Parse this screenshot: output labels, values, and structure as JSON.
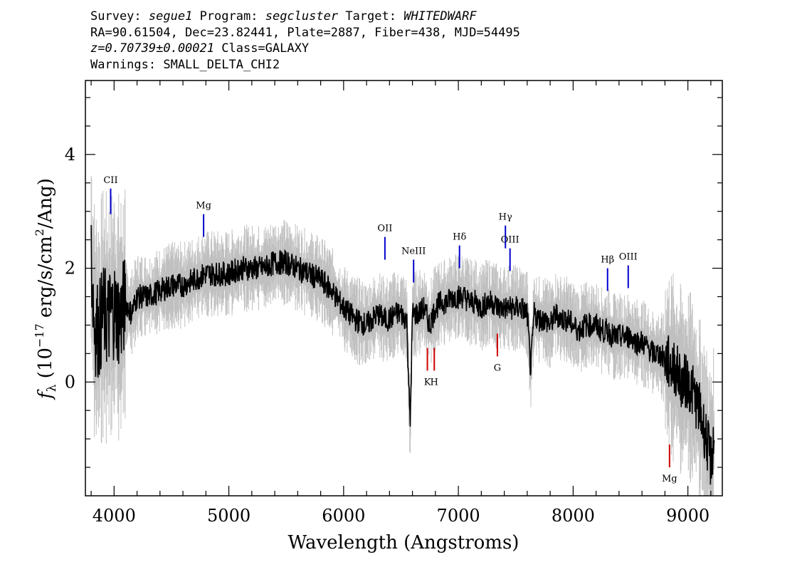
{
  "header": {
    "survey_label": "Survey:",
    "survey": "segue1",
    "program_label": "Program:",
    "program": "segcluster",
    "target_label": "Target:",
    "target": "WHITEDWARF",
    "line2": "RA=90.61504, Dec=23.82441, Plate=2887, Fiber=438, MJD=54495",
    "redshift": "z=0.70739±0.00021",
    "class": "Class=GALAXY",
    "warnings": "Warnings: SMALL_DELTA_CHI2"
  },
  "colors": {
    "spectrum": "#000000",
    "error": "#c0c0c0",
    "emission": "#0000cc",
    "absorption": "#cc0000"
  },
  "chart_data": {
    "type": "line",
    "xlabel": "Wavelength (Angstroms)",
    "ylabel_prefix": "f",
    "ylabel_sub": "λ",
    "ylabel_mid": " (10",
    "ylabel_exp": "−17",
    "ylabel_rest": " erg/s/cm",
    "ylabel_exp2": "2",
    "ylabel_end": "/Ang)",
    "xlim": [
      3750,
      9300
    ],
    "ylim": [
      -2.0,
      5.3
    ],
    "xticks": [
      "4000",
      "5000",
      "6000",
      "7000",
      "8000",
      "9000"
    ],
    "xtick_values": [
      4000,
      5000,
      6000,
      7000,
      8000,
      9000
    ],
    "yticks": [
      "0",
      "2",
      "4"
    ],
    "ytick_values": [
      0,
      2,
      4
    ],
    "series": [
      {
        "x": [
          3800,
          3830,
          3870,
          3900,
          3950,
          4000,
          4050,
          4100,
          4150,
          4200,
          4300,
          4400,
          4500,
          4600,
          4700,
          4800,
          4900,
          5000,
          5100,
          5200,
          5300,
          5400,
          5500,
          5600,
          5700,
          5800,
          5900,
          6000,
          6100,
          6200,
          6300,
          6350,
          6400,
          6450,
          6500,
          6550,
          6580,
          6600,
          6650,
          6700,
          6750,
          6800,
          6850,
          6900,
          6950,
          7000,
          7050,
          7100,
          7150,
          7200,
          7250,
          7300,
          7350,
          7400,
          7450,
          7500,
          7550,
          7600,
          7630,
          7660,
          7700,
          7750,
          7800,
          7850,
          7900,
          7950,
          8000,
          8050,
          8100,
          8150,
          8200,
          8250,
          8300,
          8350,
          8400,
          8450,
          8500,
          8550,
          8600,
          8650,
          8700,
          8750,
          8800,
          8850,
          8900,
          8950,
          9000,
          9050,
          9100,
          9150,
          9200,
          9230
        ],
        "y": [
          2.2,
          1.0,
          0.9,
          1.2,
          1.1,
          1.3,
          1.1,
          1.4,
          1.2,
          1.5,
          1.5,
          1.6,
          1.7,
          1.7,
          1.8,
          1.9,
          1.9,
          1.9,
          2.0,
          2.0,
          2.0,
          2.1,
          2.1,
          2.0,
          1.9,
          1.8,
          1.6,
          1.3,
          1.1,
          1.0,
          1.2,
          1.1,
          1.1,
          1.2,
          1.2,
          1.1,
          -0.8,
          1.2,
          1.2,
          1.3,
          1.0,
          1.3,
          1.4,
          1.4,
          1.5,
          1.5,
          1.5,
          1.4,
          1.4,
          1.3,
          1.4,
          1.4,
          1.3,
          1.3,
          1.3,
          1.3,
          1.3,
          1.2,
          0.2,
          1.2,
          1.1,
          1.1,
          1.0,
          1.2,
          1.1,
          1.1,
          1.0,
          0.9,
          1.0,
          1.0,
          1.0,
          0.9,
          0.9,
          0.8,
          0.8,
          0.8,
          0.8,
          0.7,
          0.7,
          0.6,
          0.5,
          0.5,
          0.4,
          0.3,
          0.2,
          0.0,
          0.0,
          -0.2,
          -0.5,
          -0.9,
          -1.4,
          -1.0
        ]
      }
    ],
    "line_markers": [
      {
        "label": "CII",
        "x": 3970,
        "y0": 2.95,
        "y1": 3.4,
        "type": "emission",
        "label_y": 3.5
      },
      {
        "label": "Mg",
        "x": 4780,
        "y0": 2.55,
        "y1": 2.95,
        "type": "emission",
        "label_y": 3.05
      },
      {
        "label": "OII",
        "x": 6360,
        "y0": 2.15,
        "y1": 2.55,
        "type": "emission",
        "label_y": 2.65
      },
      {
        "label": "NeIII",
        "x": 6610,
        "y0": 1.75,
        "y1": 2.15,
        "type": "emission",
        "label_y": 2.25
      },
      {
        "label": "Hδ",
        "x": 7010,
        "y0": 2.0,
        "y1": 2.4,
        "type": "emission",
        "label_y": 2.5
      },
      {
        "label": "Hγ",
        "x": 7410,
        "y0": 2.35,
        "y1": 2.75,
        "type": "emission",
        "label_y": 2.85
      },
      {
        "label": "OIII",
        "x": 7450,
        "y0": 1.95,
        "y1": 2.35,
        "type": "emission",
        "label_y": 2.45
      },
      {
        "label": "Hβ",
        "x": 8300,
        "y0": 1.6,
        "y1": 2.0,
        "type": "emission",
        "label_y": 2.1
      },
      {
        "label": "OIII",
        "x": 8480,
        "y0": 1.65,
        "y1": 2.05,
        "type": "emission",
        "label_y": 2.15
      },
      {
        "label": "K",
        "x": 6730,
        "y0": 0.2,
        "y1": 0.6,
        "type": "absorption",
        "label_y": -0.05
      },
      {
        "label": "H",
        "x": 6790,
        "y0": 0.2,
        "y1": 0.6,
        "type": "absorption",
        "label_y": -0.05
      },
      {
        "label": "G",
        "x": 7340,
        "y0": 0.45,
        "y1": 0.85,
        "type": "absorption",
        "label_y": 0.2
      },
      {
        "label": "Mg",
        "x": 8840,
        "y0": -1.5,
        "y1": -1.1,
        "type": "absorption",
        "label_y": -1.75
      }
    ]
  }
}
